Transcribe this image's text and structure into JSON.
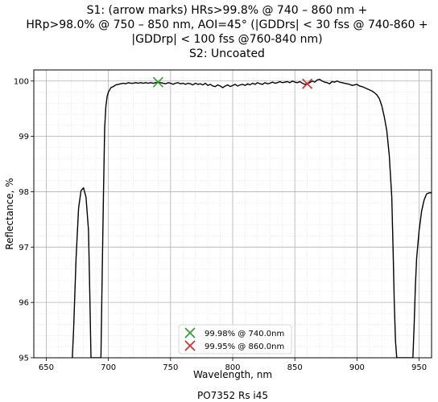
{
  "chart_data": {
    "type": "line",
    "title_lines": [
      "S1: (arrow marks) HRs>99.8% @ 740 – 860 nm +",
      "HRp>98.0% @ 750 – 850 nm, AOI=45° (|GDDrs| < 30 fss @ 740-860 +",
      "|GDDrp| < 100 fss @760-840 nm)",
      "S2: Uncoated"
    ],
    "xlabel": "Wavelength, nm",
    "ylabel": "Reflectance, %",
    "footer": "PO7352 Rs i45",
    "xlim": [
      640,
      960
    ],
    "ylim": [
      95,
      100.2
    ],
    "x_ticks": [
      650,
      700,
      750,
      800,
      850,
      900,
      950
    ],
    "y_ticks": [
      95,
      96,
      97,
      98,
      99,
      100
    ],
    "grid": true,
    "legend_position": "bottom-center",
    "series": [
      {
        "color": "#000000",
        "x": [
          671,
          672,
          674,
          676,
          678,
          680,
          682,
          684,
          685,
          686,
          694,
          695,
          696,
          697,
          698,
          699,
          700,
          702,
          704,
          706,
          708,
          710,
          712,
          714,
          716,
          718,
          720,
          722,
          724,
          726,
          728,
          730,
          732,
          734,
          736,
          738,
          740,
          742,
          744,
          746,
          748,
          750,
          752,
          754,
          756,
          758,
          760,
          762,
          764,
          766,
          768,
          770,
          772,
          774,
          776,
          778,
          780,
          782,
          784,
          786,
          788,
          790,
          792,
          794,
          796,
          798,
          800,
          802,
          804,
          806,
          808,
          810,
          812,
          814,
          816,
          818,
          820,
          822,
          824,
          826,
          828,
          830,
          832,
          834,
          836,
          838,
          840,
          842,
          844,
          846,
          848,
          850,
          852,
          854,
          856,
          858,
          860,
          862,
          864,
          866,
          868,
          870,
          872,
          874,
          876,
          878,
          880,
          882,
          884,
          886,
          888,
          890,
          892,
          894,
          896,
          898,
          900,
          902,
          904,
          906,
          908,
          910,
          912,
          914,
          916,
          918,
          920,
          922,
          924,
          926,
          928,
          929,
          930,
          931,
          932,
          945,
          946,
          947,
          948,
          950,
          952,
          954,
          956,
          958,
          960
        ],
        "y": [
          95.0,
          95.5,
          96.8,
          97.7,
          98.02,
          98.07,
          97.9,
          97.3,
          96.2,
          95.0,
          95.0,
          96.5,
          97.9,
          99.15,
          99.55,
          99.72,
          99.8,
          99.88,
          99.9,
          99.93,
          99.94,
          99.95,
          99.96,
          99.95,
          99.97,
          99.96,
          99.96,
          99.97,
          99.96,
          99.97,
          99.96,
          99.97,
          99.96,
          99.97,
          99.96,
          99.97,
          99.98,
          99.97,
          99.96,
          99.95,
          99.97,
          99.96,
          99.94,
          99.96,
          99.97,
          99.95,
          99.96,
          99.94,
          99.96,
          99.95,
          99.93,
          99.96,
          99.94,
          99.95,
          99.93,
          99.96,
          99.92,
          99.94,
          99.91,
          99.9,
          99.93,
          99.91,
          99.88,
          99.91,
          99.93,
          99.9,
          99.92,
          99.94,
          99.91,
          99.93,
          99.94,
          99.92,
          99.95,
          99.93,
          99.96,
          99.94,
          99.97,
          99.95,
          99.94,
          99.97,
          99.95,
          99.96,
          99.98,
          99.96,
          99.97,
          99.99,
          99.97,
          99.98,
          99.99,
          99.97,
          100.0,
          99.98,
          99.97,
          99.99,
          99.96,
          99.94,
          99.95,
          99.97,
          100.0,
          99.98,
          100.02,
          100.03,
          100.0,
          99.98,
          99.97,
          99.95,
          99.99,
          99.98,
          100.0,
          99.98,
          99.97,
          99.96,
          99.95,
          99.94,
          99.92,
          99.93,
          99.94,
          99.91,
          99.9,
          99.88,
          99.86,
          99.84,
          99.82,
          99.79,
          99.75,
          99.68,
          99.55,
          99.35,
          99.1,
          98.65,
          97.9,
          97.0,
          96.0,
          95.3,
          95.0,
          95.0,
          95.6,
          96.3,
          96.8,
          97.3,
          97.65,
          97.85,
          97.96,
          97.98,
          97.98
        ]
      }
    ],
    "markers": [
      {
        "x": 740,
        "y": 99.98,
        "label": "99.98% @ 740.0nm",
        "color": "#2ca02c"
      },
      {
        "x": 860,
        "y": 99.95,
        "label": "99.95% @ 860.0nm",
        "color": "#d62728"
      }
    ]
  }
}
